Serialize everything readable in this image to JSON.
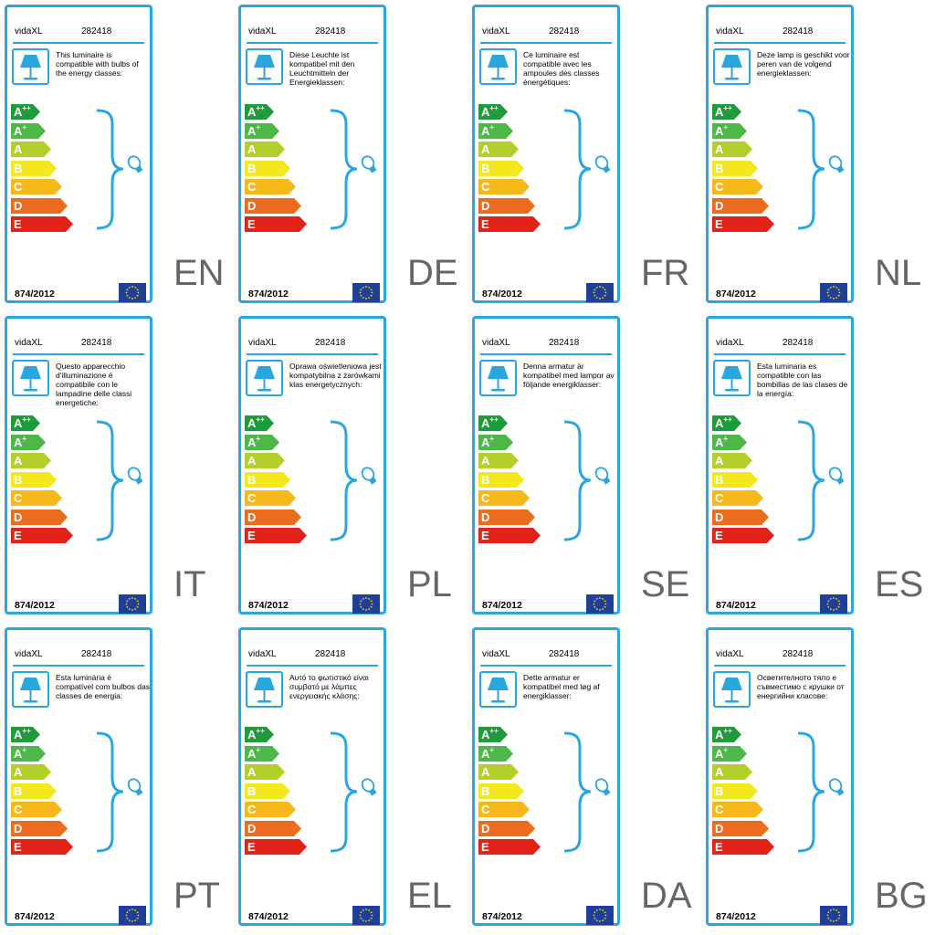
{
  "panels": [
    {
      "code": "EN",
      "brand": "vidaXL",
      "model": "282418",
      "desc": "This luminaire is compatible with bulbs of the energy classes:",
      "reg": "874/2012"
    },
    {
      "code": "DE",
      "brand": "vidaXL",
      "model": "282418",
      "desc": "Diese Leuchte ist kompatibel mit den Leuchtmitteln der Energieklassen:",
      "reg": "874/2012"
    },
    {
      "code": "FR",
      "brand": "vidaXL",
      "model": "282418",
      "desc": "Ce luminaire est compatible avec les ampoules des classes énergétiques:",
      "reg": "874/2012"
    },
    {
      "code": "NL",
      "brand": "vidaXL",
      "model": "282418",
      "desc": "Deze lamp is geschikt voor peren van de volgend energieklassen:",
      "reg": "874/2012"
    },
    {
      "code": "IT",
      "brand": "vidaXL",
      "model": "282418",
      "desc": "Questo apparecchio d'illuminazione è compatibile con le lampadine delle classi energetiche:",
      "reg": "874/2012"
    },
    {
      "code": "PL",
      "brand": "vidaXL",
      "model": "282418",
      "desc": "Oprawa oświetleniowa jest kompatybilna z żarówkami klas energetycznych:",
      "reg": "874/2012"
    },
    {
      "code": "SE",
      "brand": "vidaXL",
      "model": "282418",
      "desc": "Denna armatur är kompatibel med lampor av följande energiklasser:",
      "reg": "874/2012"
    },
    {
      "code": "ES",
      "brand": "vidaXL",
      "model": "282418",
      "desc": "Esta luminaria es compatible con las bombillas de las clases de la energía:",
      "reg": "874/2012"
    },
    {
      "code": "PT",
      "brand": "vidaXL",
      "model": "282418",
      "desc": "Esta luminária é compatível com bulbos das classes de energia:",
      "reg": "874/2012"
    },
    {
      "code": "EL",
      "brand": "vidaXL",
      "model": "282418",
      "desc": "Αυτό το φωτιστικό είναι συμβατό με λάμπες ενεργειακής κλάσης:",
      "reg": "874/2012"
    },
    {
      "code": "DA",
      "brand": "vidaXL",
      "model": "282418",
      "desc": "Dette armatur er kompatibel med løg af energiklasser:",
      "reg": "874/2012"
    },
    {
      "code": "BG",
      "brand": "vidaXL",
      "model": "282418",
      "desc": "Осветителното тяло е съвместимо с крушки от енергийни класове:",
      "reg": "874/2012"
    }
  ],
  "energy_classes": [
    {
      "letter": "A",
      "sup": "++",
      "color": "#1e9b3a"
    },
    {
      "letter": "A",
      "sup": "+",
      "color": "#4cb848"
    },
    {
      "letter": "A",
      "sup": "",
      "color": "#b5cf2a"
    },
    {
      "letter": "B",
      "sup": "",
      "color": "#f2e81b"
    },
    {
      "letter": "C",
      "sup": "",
      "color": "#f6b81a"
    },
    {
      "letter": "D",
      "sup": "",
      "color": "#ec6c1f"
    },
    {
      "letter": "E",
      "sup": "",
      "color": "#e2231a"
    }
  ],
  "accent_color": "#29a6dd",
  "icons": {
    "lamp": "table-lamp-icon",
    "bulb": "bulb-icon",
    "flag": "eu-flag-icon",
    "brace": "curly-brace-icon"
  }
}
